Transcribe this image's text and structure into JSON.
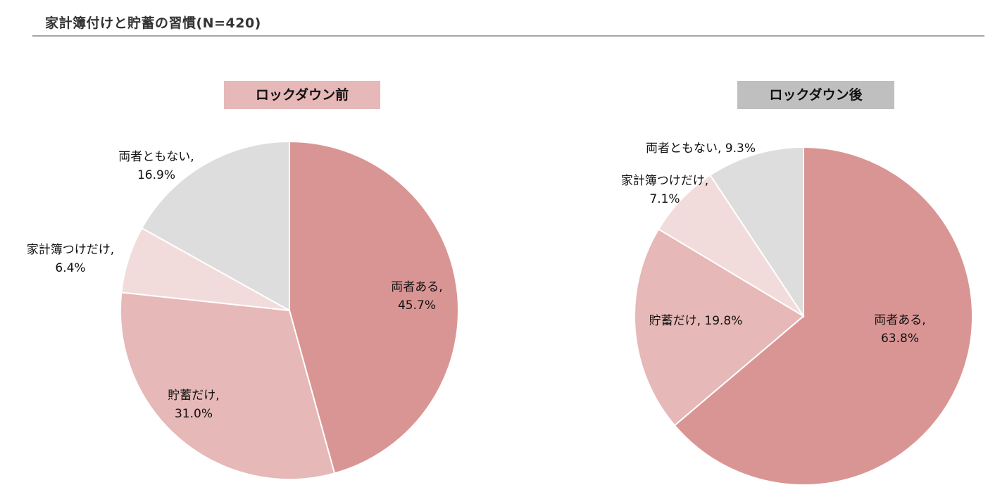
{
  "header": {
    "title": "家計簿付けと貯蓄の習慣(N=420)"
  },
  "colors": {
    "both": "#d99594",
    "savings_only": "#e6b8b7",
    "budget_only": "#f2dcdb",
    "neither": "#dddddd",
    "badge_before": "#e6b8b7",
    "badge_after": "#bfbfbf"
  },
  "chart_data": [
    {
      "type": "pie",
      "title": "ロックダウン前",
      "slices": [
        {
          "name": "両者ある",
          "value": 45.7,
          "label_lines": [
            "両者ある,",
            "45.7%"
          ],
          "color_key": "both"
        },
        {
          "name": "貯蓄だけ",
          "value": 31.0,
          "label_lines": [
            "貯蓄だけ,",
            "31.0%"
          ],
          "color_key": "savings_only"
        },
        {
          "name": "家計簿つけだけ",
          "value": 6.4,
          "label_lines": [
            "家計簿つけだけ,",
            "6.4%"
          ],
          "color_key": "budget_only"
        },
        {
          "name": "両者ともない",
          "value": 16.9,
          "label_lines": [
            "両者ともない,",
            "16.9%"
          ],
          "color_key": "neither"
        }
      ]
    },
    {
      "type": "pie",
      "title": "ロックダウン後",
      "slices": [
        {
          "name": "両者ある",
          "value": 63.8,
          "label_lines": [
            "両者ある,",
            "63.8%"
          ],
          "color_key": "both"
        },
        {
          "name": "貯蓄だけ",
          "value": 19.8,
          "label_lines": [
            "貯蓄だけ, 19.8%"
          ],
          "color_key": "savings_only"
        },
        {
          "name": "家計簿つけだけ",
          "value": 7.1,
          "label_lines": [
            "家計簿つけだけ,",
            "7.1%"
          ],
          "color_key": "budget_only"
        },
        {
          "name": "両者ともない",
          "value": 9.3,
          "label_lines": [
            "両者ともない, 9.3%"
          ],
          "color_key": "neither"
        }
      ]
    }
  ]
}
